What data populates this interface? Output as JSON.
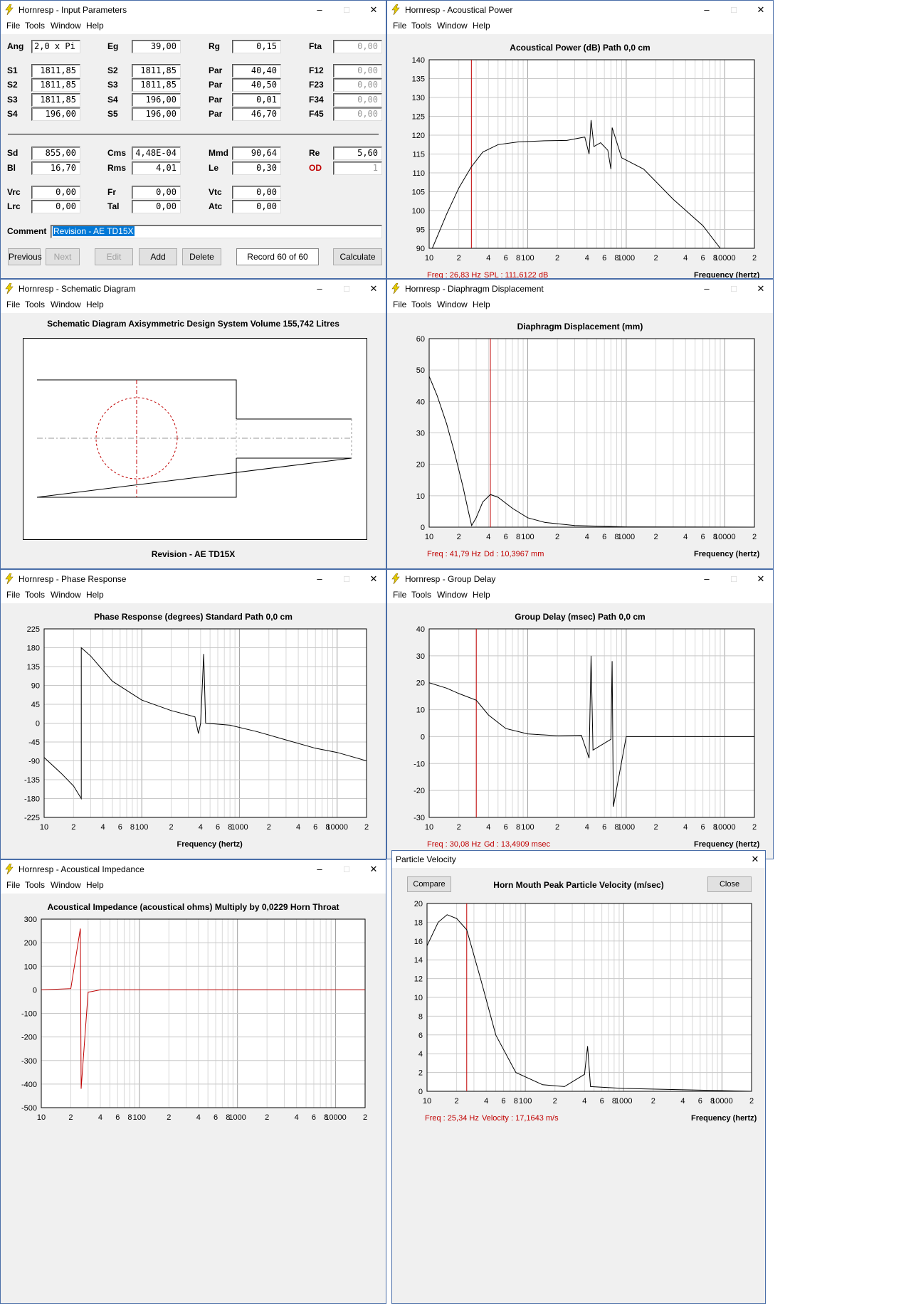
{
  "menu": {
    "file": "File",
    "tools": "Tools",
    "window": "Window",
    "help": "Help"
  },
  "win_input": {
    "title": "Hornresp - Input Parameters"
  },
  "params": {
    "ang": {
      "label": "Ang",
      "value": "2,0 x Pi"
    },
    "eg": {
      "label": "Eg",
      "value": "39,00"
    },
    "rg": {
      "label": "Rg",
      "value": "0,15"
    },
    "fta": {
      "label": "Fta",
      "value": "0,00"
    },
    "s1": {
      "label": "S1",
      "value": "1811,85"
    },
    "s2b": {
      "label": "S2",
      "value": "1811,85"
    },
    "par1": {
      "label": "Par",
      "value": "40,40"
    },
    "f12": {
      "label": "F12",
      "value": "0,00"
    },
    "s2": {
      "label": "S2",
      "value": "1811,85"
    },
    "s3b": {
      "label": "S3",
      "value": "1811,85"
    },
    "par2": {
      "label": "Par",
      "value": "40,50"
    },
    "f23": {
      "label": "F23",
      "value": "0,00"
    },
    "s3": {
      "label": "S3",
      "value": "1811,85"
    },
    "s4b": {
      "label": "S4",
      "value": "196,00"
    },
    "par3": {
      "label": "Par",
      "value": "0,01"
    },
    "f34": {
      "label": "F34",
      "value": "0,00"
    },
    "s4": {
      "label": "S4",
      "value": "196,00"
    },
    "s5": {
      "label": "S5",
      "value": "196,00"
    },
    "par4": {
      "label": "Par",
      "value": "46,70"
    },
    "f45": {
      "label": "F45",
      "value": "0,00"
    },
    "sd": {
      "label": "Sd",
      "value": "855,00"
    },
    "cms": {
      "label": "Cms",
      "value": "4,48E-04"
    },
    "mmd": {
      "label": "Mmd",
      "value": "90,64"
    },
    "re": {
      "label": "Re",
      "value": "5,60"
    },
    "bl": {
      "label": "Bl",
      "value": "16,70"
    },
    "rms": {
      "label": "Rms",
      "value": "4,01"
    },
    "le": {
      "label": "Le",
      "value": "0,30"
    },
    "od": {
      "label": "OD",
      "value": "1"
    },
    "vrc": {
      "label": "Vrc",
      "value": "0,00"
    },
    "fr": {
      "label": "Fr",
      "value": "0,00"
    },
    "vtc": {
      "label": "Vtc",
      "value": "0,00"
    },
    "lrc": {
      "label": "Lrc",
      "value": "0,00"
    },
    "tal": {
      "label": "Tal",
      "value": "0,00"
    },
    "atc": {
      "label": "Atc",
      "value": "0,00"
    },
    "comment": {
      "label": "Comment",
      "value": "Revision - AE TD15X"
    }
  },
  "buttons": {
    "previous": "Previous",
    "next": "Next",
    "edit": "Edit",
    "add": "Add",
    "delete": "Delete",
    "record": "Record 60 of 60",
    "calculate": "Calculate"
  },
  "win_power": {
    "title": "Hornresp - Acoustical Power",
    "chart_title": "Acoustical Power (dB)    Path 0,0 cm",
    "readout_freq": "Freq : 26,83 Hz",
    "readout_val": "SPL : 111,6122 dB",
    "xlabel": "Frequency (hertz)"
  },
  "win_schematic": {
    "title": "Hornresp - Schematic Diagram",
    "heading": "Schematic Diagram    Axisymmetric Design    System Volume 155,742 Litres",
    "footer": "Revision - AE TD15X"
  },
  "win_disp": {
    "title": "Hornresp - Diaphragm Displacement",
    "chart_title": "Diaphragm Displacement (mm)",
    "readout_freq": "Freq : 41,79 Hz",
    "readout_val": "Dd : 10,3967 mm",
    "xlabel": "Frequency (hertz)"
  },
  "win_phase": {
    "title": "Hornresp - Phase Response",
    "chart_title": "Phase Response (degrees)    Standard    Path 0,0 cm",
    "xlabel": "Frequency (hertz)"
  },
  "win_gd": {
    "title": "Hornresp - Group Delay",
    "chart_title": "Group Delay (msec)    Path 0,0 cm",
    "readout_freq": "Freq : 30,08 Hz",
    "readout_val": "Gd : 13,4909 msec",
    "xlabel": "Frequency (hertz)"
  },
  "win_imp": {
    "title": "Hornresp - Acoustical Impedance",
    "chart_title": "Acoustical Impedance (acoustical ohms)    Multiply by 0,0229    Horn Throat"
  },
  "win_vel": {
    "title": "Particle Velocity",
    "chart_title": "Horn Mouth Peak Particle Velocity (m/sec)",
    "compare": "Compare",
    "close": "Close",
    "readout_freq": "Freq : 25,34 Hz",
    "readout_val": "Velocity : 17,1643 m/s",
    "xlabel": "Frequency (hertz)"
  },
  "freq_ticks": [
    "10",
    "2",
    "4",
    "6",
    "8",
    "100",
    "2",
    "4",
    "6",
    "8",
    "1000",
    "2",
    "4",
    "6",
    "8",
    "10000",
    "2"
  ],
  "chart_data": [
    {
      "type": "line",
      "name": "power",
      "ylim": [
        90,
        140
      ],
      "yticks": [
        "140",
        "135",
        "130",
        "125",
        "120",
        "115",
        "110",
        "105",
        "100",
        "95",
        "90"
      ],
      "xscale": "log",
      "xlim": [
        10,
        20000
      ],
      "cursor": 26.83,
      "points": [
        [
          10,
          88
        ],
        [
          15,
          99
        ],
        [
          20,
          106
        ],
        [
          26.83,
          111.6
        ],
        [
          35,
          115.5
        ],
        [
          50,
          117.5
        ],
        [
          80,
          118.2
        ],
        [
          150,
          118.5
        ],
        [
          250,
          118.6
        ],
        [
          380,
          119.5
        ],
        [
          420,
          115
        ],
        [
          440,
          124
        ],
        [
          470,
          117
        ],
        [
          550,
          118
        ],
        [
          650,
          116
        ],
        [
          700,
          111
        ],
        [
          720,
          122
        ],
        [
          900,
          114
        ],
        [
          1500,
          111
        ],
        [
          3000,
          103
        ],
        [
          6000,
          96
        ],
        [
          9000,
          90
        ]
      ]
    },
    {
      "type": "line",
      "name": "displacement",
      "ylim": [
        0,
        60
      ],
      "yticks": [
        "60",
        "50",
        "40",
        "30",
        "20",
        "10",
        "0"
      ],
      "xscale": "log",
      "xlim": [
        10,
        20000
      ],
      "cursor": 41.79,
      "points": [
        [
          10,
          48
        ],
        [
          12,
          42
        ],
        [
          15,
          33
        ],
        [
          18,
          24
        ],
        [
          22,
          13
        ],
        [
          25,
          5
        ],
        [
          27,
          0.5
        ],
        [
          30,
          3
        ],
        [
          35,
          8
        ],
        [
          41.79,
          10.4
        ],
        [
          50,
          9.5
        ],
        [
          70,
          6
        ],
        [
          100,
          3
        ],
        [
          150,
          1.5
        ],
        [
          300,
          0.5
        ],
        [
          1000,
          0.1
        ],
        [
          20000,
          0
        ]
      ]
    },
    {
      "type": "line",
      "name": "phase",
      "ylim": [
        -225,
        225
      ],
      "yticks": [
        "225",
        "180",
        "135",
        "90",
        "45",
        "0",
        "-45",
        "-90",
        "-135",
        "-180",
        "-225"
      ],
      "xscale": "log",
      "xlim": [
        10,
        20000
      ],
      "points": [
        [
          10,
          -82
        ],
        [
          15,
          -120
        ],
        [
          20,
          -150
        ],
        [
          24,
          -180
        ],
        [
          24.01,
          180
        ],
        [
          30,
          160
        ],
        [
          50,
          100
        ],
        [
          100,
          55
        ],
        [
          200,
          30
        ],
        [
          350,
          15
        ],
        [
          380,
          -25
        ],
        [
          400,
          0
        ],
        [
          430,
          165
        ],
        [
          450,
          0
        ],
        [
          800,
          -5
        ],
        [
          1500,
          -20
        ],
        [
          3000,
          -40
        ],
        [
          6000,
          -60
        ],
        [
          10000,
          -70
        ],
        [
          20000,
          -90
        ]
      ]
    },
    {
      "type": "line",
      "name": "group_delay",
      "ylim": [
        -30,
        40
      ],
      "yticks": [
        "40",
        "30",
        "20",
        "10",
        "0",
        "-10",
        "-20",
        "-30"
      ],
      "xscale": "log",
      "xlim": [
        10,
        20000
      ],
      "cursor": 30.08,
      "points": [
        [
          10,
          20
        ],
        [
          15,
          18
        ],
        [
          20,
          16
        ],
        [
          30.08,
          13.5
        ],
        [
          40,
          8
        ],
        [
          60,
          3
        ],
        [
          100,
          1
        ],
        [
          200,
          0.3
        ],
        [
          350,
          0.5
        ],
        [
          420,
          -8
        ],
        [
          440,
          30
        ],
        [
          460,
          -5
        ],
        [
          700,
          -1
        ],
        [
          720,
          28
        ],
        [
          740,
          -26
        ],
        [
          1000,
          0
        ],
        [
          20000,
          0
        ]
      ]
    },
    {
      "type": "line",
      "name": "impedance",
      "ylim": [
        -500,
        300
      ],
      "yticks": [
        "300",
        "200",
        "100",
        "0",
        "-100",
        "-200",
        "-300",
        "-400",
        "-500"
      ],
      "xscale": "log",
      "xlim": [
        10,
        20000
      ],
      "points": [
        [
          10,
          0
        ],
        [
          20,
          5
        ],
        [
          25,
          260
        ],
        [
          25.5,
          -420
        ],
        [
          30,
          -10
        ],
        [
          40,
          0
        ],
        [
          20000,
          0
        ]
      ]
    },
    {
      "type": "line",
      "name": "particle_velocity",
      "ylim": [
        0,
        20
      ],
      "yticks": [
        "20",
        "18",
        "16",
        "14",
        "12",
        "10",
        "8",
        "6",
        "4",
        "2",
        "0"
      ],
      "xscale": "log",
      "xlim": [
        10,
        20000
      ],
      "cursor": 25.34,
      "points": [
        [
          10,
          15.5
        ],
        [
          13,
          18
        ],
        [
          16,
          18.8
        ],
        [
          20,
          18.4
        ],
        [
          25.34,
          17.2
        ],
        [
          35,
          12
        ],
        [
          50,
          6
        ],
        [
          80,
          2
        ],
        [
          150,
          0.7
        ],
        [
          250,
          0.5
        ],
        [
          400,
          1.8
        ],
        [
          430,
          4.8
        ],
        [
          460,
          0.5
        ],
        [
          1000,
          0.3
        ],
        [
          20000,
          0
        ]
      ]
    }
  ]
}
